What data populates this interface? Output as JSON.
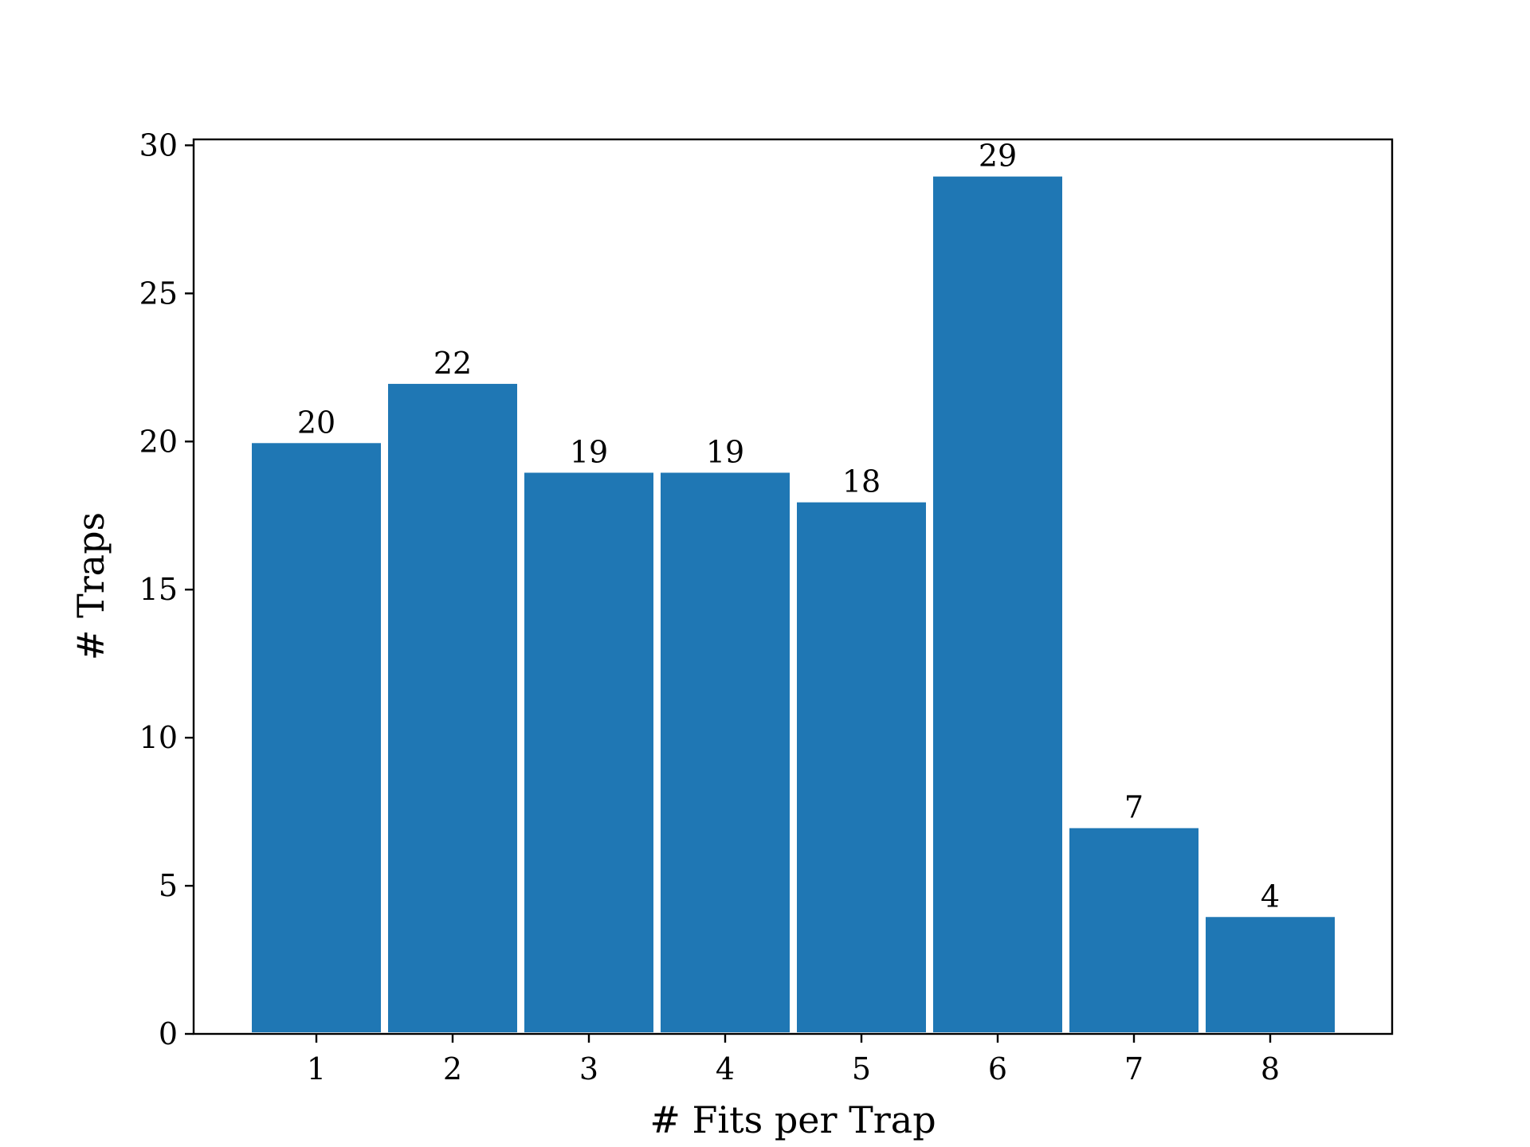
{
  "chart_data": {
    "type": "bar",
    "categories": [
      "1",
      "2",
      "3",
      "4",
      "5",
      "6",
      "7",
      "8"
    ],
    "values": [
      20,
      22,
      19,
      19,
      18,
      29,
      7,
      4
    ],
    "data_labels": [
      "20",
      "22",
      "19",
      "19",
      "18",
      "29",
      "7",
      "4"
    ],
    "title": "",
    "xlabel": "# Fits per Trap",
    "ylabel": "# Traps",
    "ylim": [
      0,
      30
    ],
    "yticks": [
      0,
      5,
      10,
      15,
      20,
      25,
      30
    ],
    "ytick_labels": [
      "0",
      "5",
      "10",
      "15",
      "20",
      "25",
      "30"
    ],
    "grid": false,
    "bar_color": "#1f77b4",
    "bar_edge_color": "#ffffff"
  }
}
